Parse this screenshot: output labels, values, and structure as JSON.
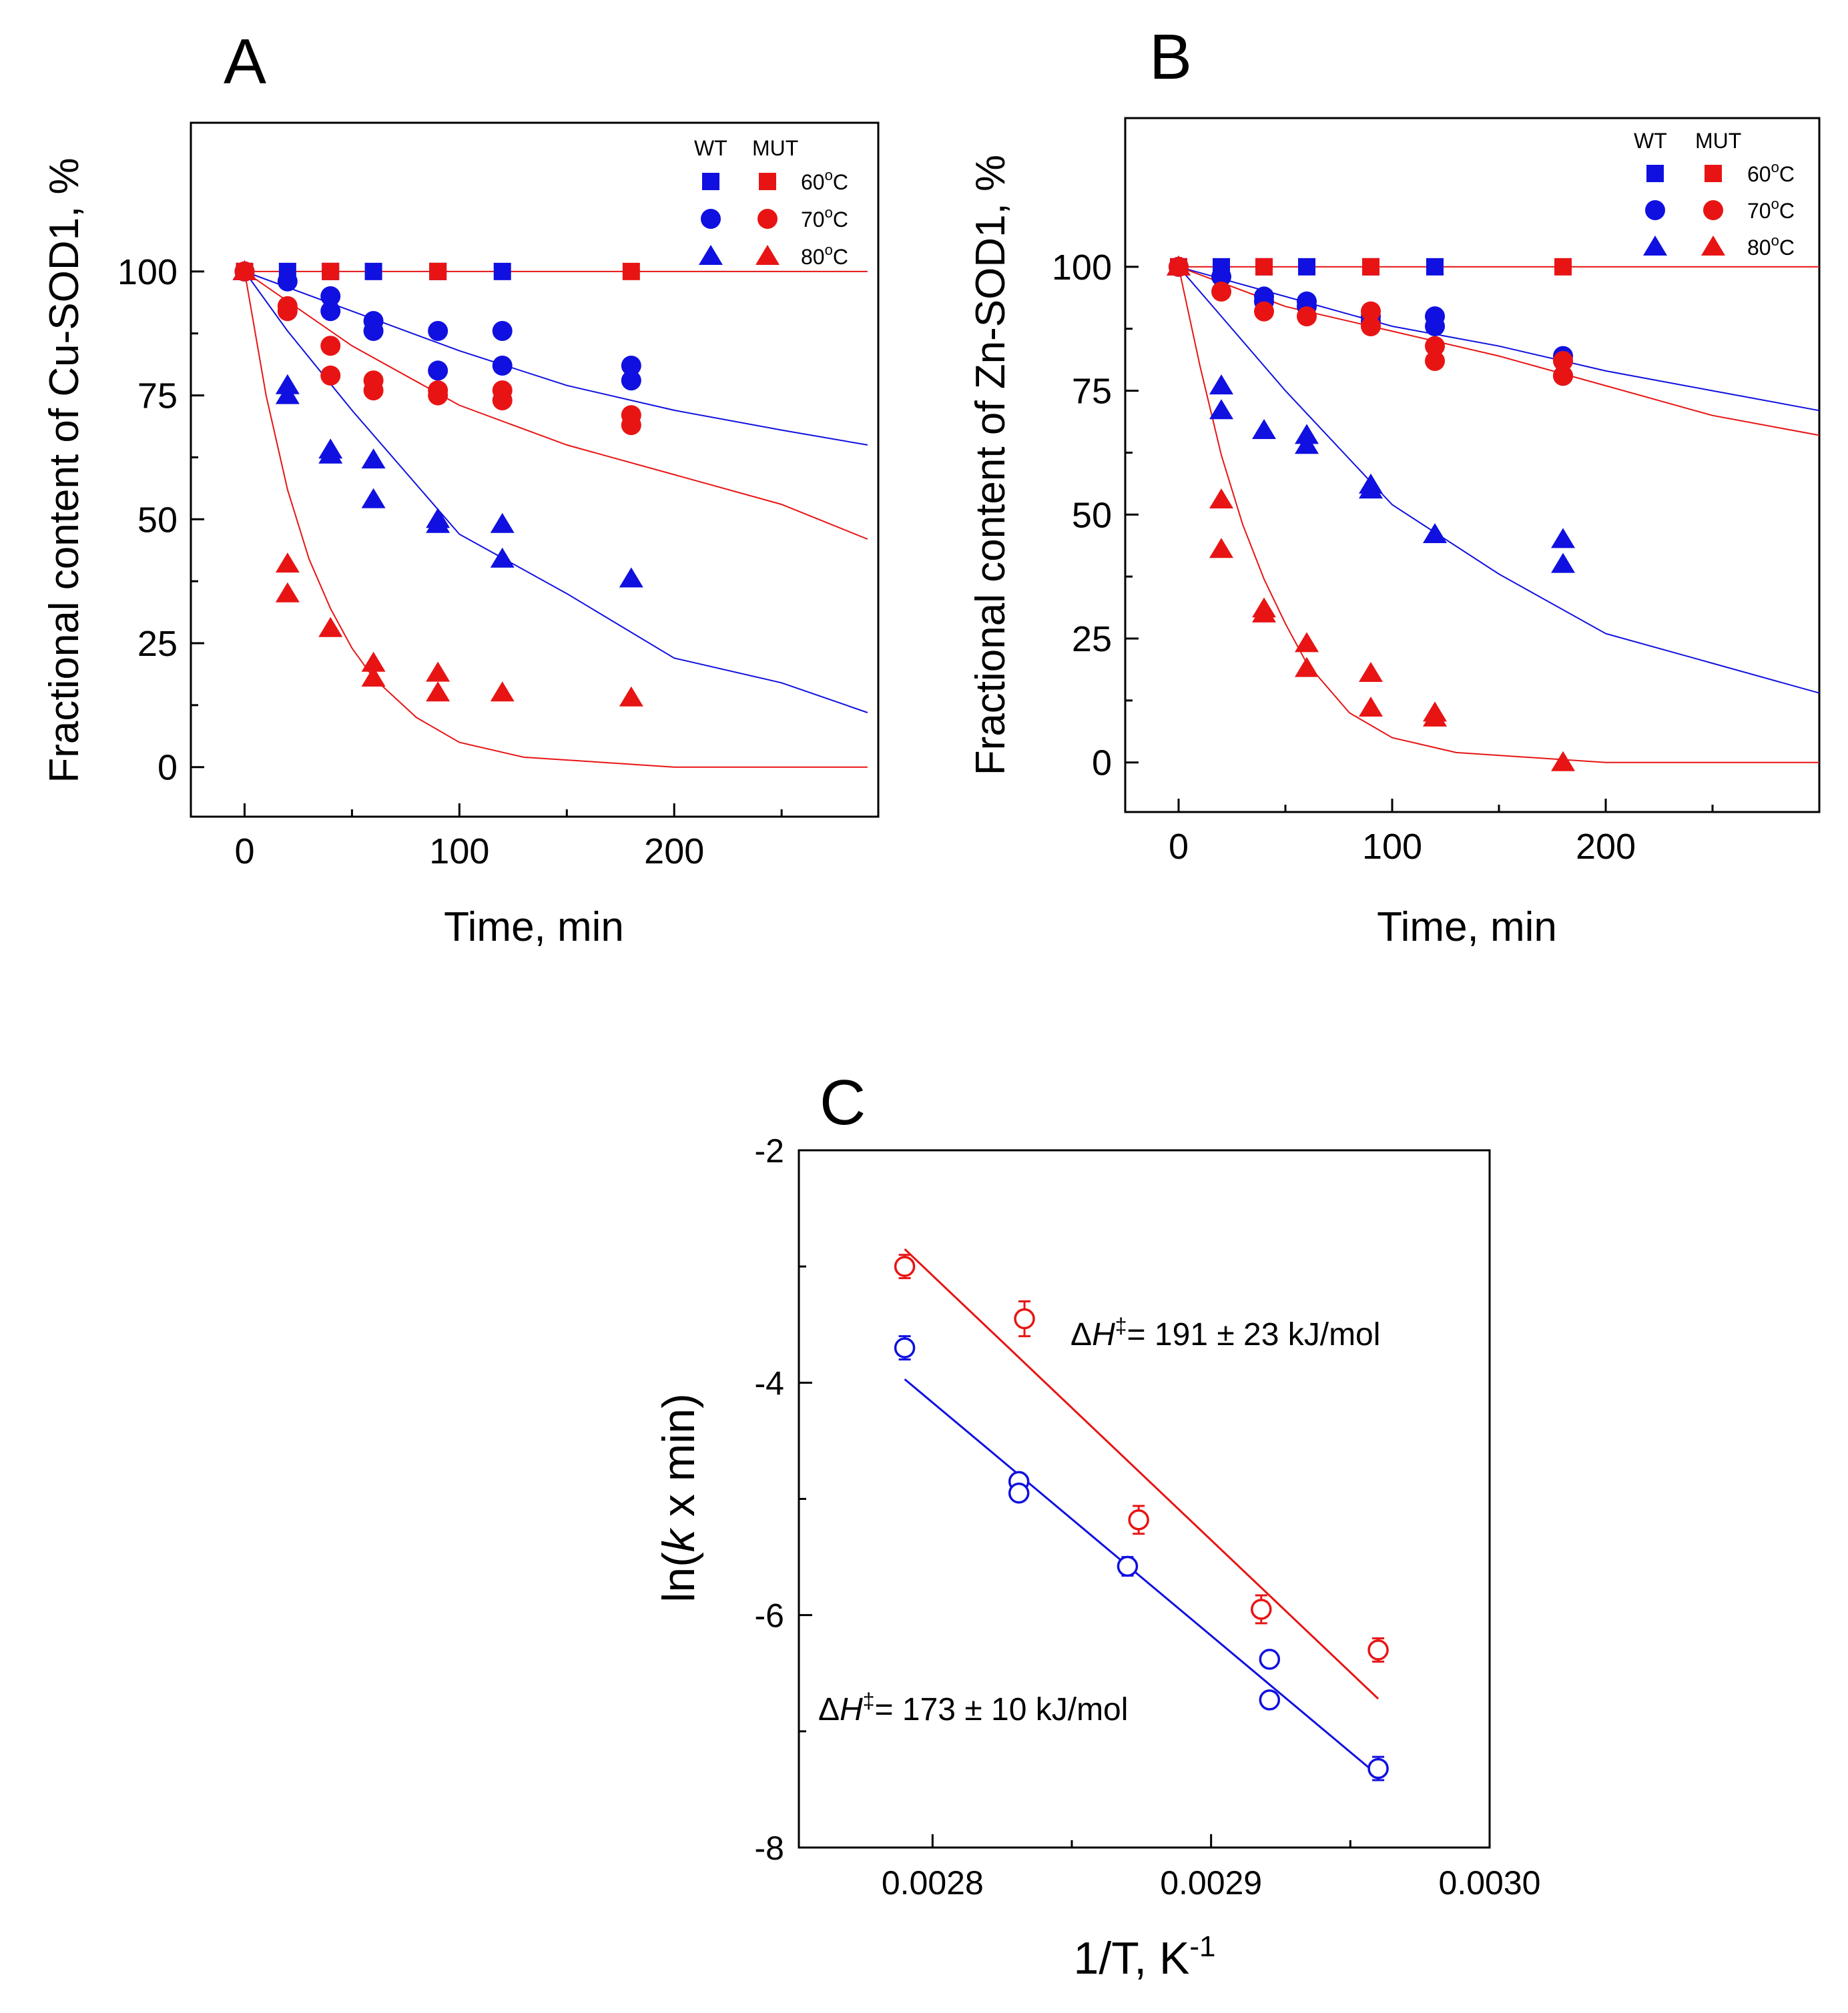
{
  "colors": {
    "wt": "#1010e0",
    "mut": "#e81414"
  },
  "chart_data": [
    {
      "id": "A",
      "type": "scatter",
      "panel_label": "A",
      "xlabel": "Time, min",
      "ylabel": "Fractional content of Cu-SOD1, %",
      "xlim": [
        -25,
        295
      ],
      "ylim": [
        -10,
        130
      ],
      "xticks": [
        0,
        100,
        200
      ],
      "yticks": [
        0,
        25,
        50,
        75,
        100
      ],
      "legend": {
        "position": "top-right",
        "headers": [
          "WT",
          "MUT"
        ],
        "rows": [
          {
            "label": "60",
            "unit": "C",
            "marker": "square"
          },
          {
            "label": "70",
            "unit": "C",
            "marker": "circle"
          },
          {
            "label": "80",
            "unit": "C",
            "marker": "triangle"
          }
        ]
      },
      "series": [
        {
          "name": "WT 60°C",
          "group": "wt",
          "marker": "square",
          "points": [
            [
              0,
              100
            ],
            [
              20,
              100
            ],
            [
              40,
              100
            ],
            [
              60,
              100
            ],
            [
              90,
              100
            ],
            [
              120,
              100
            ]
          ]
        },
        {
          "name": "MUT 60°C",
          "group": "mut",
          "marker": "square",
          "points": [
            [
              0,
              100
            ],
            [
              40,
              100
            ],
            [
              90,
              100
            ],
            [
              180,
              100
            ]
          ]
        },
        {
          "name": "WT 70°C",
          "group": "wt",
          "marker": "circle",
          "points": [
            [
              0,
              100
            ],
            [
              20,
              98
            ],
            [
              40,
              95
            ],
            [
              40,
              92
            ],
            [
              60,
              90
            ],
            [
              60,
              88
            ],
            [
              90,
              88
            ],
            [
              90,
              80
            ],
            [
              120,
              88
            ],
            [
              120,
              81
            ],
            [
              180,
              81
            ],
            [
              180,
              78
            ]
          ]
        },
        {
          "name": "MUT 70°C",
          "group": "mut",
          "marker": "circle",
          "points": [
            [
              0,
              100
            ],
            [
              20,
              93
            ],
            [
              20,
              92
            ],
            [
              40,
              85
            ],
            [
              40,
              79
            ],
            [
              60,
              78
            ],
            [
              60,
              76
            ],
            [
              90,
              76
            ],
            [
              90,
              75
            ],
            [
              120,
              76
            ],
            [
              120,
              74
            ],
            [
              180,
              71
            ],
            [
              180,
              69
            ]
          ]
        },
        {
          "name": "WT 80°C",
          "group": "wt",
          "marker": "triangle",
          "points": [
            [
              0,
              100
            ],
            [
              20,
              77
            ],
            [
              20,
              75
            ],
            [
              40,
              64
            ],
            [
              40,
              63
            ],
            [
              60,
              62
            ],
            [
              60,
              54
            ],
            [
              90,
              50
            ],
            [
              90,
              49
            ],
            [
              120,
              49
            ],
            [
              120,
              42
            ],
            [
              180,
              38
            ]
          ]
        },
        {
          "name": "MUT 80°C",
          "group": "mut",
          "marker": "triangle",
          "points": [
            [
              0,
              100
            ],
            [
              20,
              41
            ],
            [
              20,
              35
            ],
            [
              40,
              28
            ],
            [
              60,
              21
            ],
            [
              60,
              18
            ],
            [
              90,
              19
            ],
            [
              90,
              15
            ],
            [
              120,
              15
            ],
            [
              180,
              14
            ]
          ]
        }
      ],
      "fits": [
        {
          "name": "MUT 60°C fit",
          "group": "mut",
          "points": [
            [
              0,
              100
            ],
            [
              290,
              100
            ]
          ]
        },
        {
          "name": "WT 70°C fit",
          "group": "wt",
          "points": [
            [
              0,
              100
            ],
            [
              50,
              92
            ],
            [
              100,
              84
            ],
            [
              150,
              77
            ],
            [
              200,
              72
            ],
            [
              250,
              68
            ],
            [
              290,
              65
            ]
          ]
        },
        {
          "name": "MUT 70°C fit",
          "group": "mut",
          "points": [
            [
              0,
              100
            ],
            [
              50,
              85
            ],
            [
              100,
              73
            ],
            [
              150,
              65
            ],
            [
              200,
              59
            ],
            [
              250,
              53
            ],
            [
              290,
              46
            ]
          ]
        },
        {
          "name": "WT 80°C fit",
          "group": "wt",
          "points": [
            [
              0,
              100
            ],
            [
              20,
              88
            ],
            [
              50,
              72
            ],
            [
              100,
              47
            ],
            [
              150,
              35
            ],
            [
              200,
              22
            ],
            [
              250,
              17
            ],
            [
              290,
              11
            ]
          ]
        },
        {
          "name": "MUT 80°C fit",
          "group": "mut",
          "points": [
            [
              0,
              100
            ],
            [
              10,
              75
            ],
            [
              20,
              56
            ],
            [
              30,
              42
            ],
            [
              40,
              32
            ],
            [
              50,
              24
            ],
            [
              60,
              18
            ],
            [
              80,
              10
            ],
            [
              100,
              5
            ],
            [
              130,
              2
            ],
            [
              200,
              0
            ],
            [
              290,
              0
            ]
          ]
        }
      ]
    },
    {
      "id": "B",
      "type": "scatter",
      "panel_label": "B",
      "xlabel": "Time, min",
      "ylabel": "Fractional content of Zn-SOD1, %",
      "xlim": [
        -25,
        300
      ],
      "ylim": [
        -10,
        130
      ],
      "xticks": [
        0,
        100,
        200
      ],
      "yticks": [
        0,
        25,
        50,
        75,
        100
      ],
      "legend": {
        "position": "top-right",
        "headers": [
          "WT",
          "MUT"
        ],
        "rows": [
          {
            "label": "60",
            "unit": "C",
            "marker": "square"
          },
          {
            "label": "70",
            "unit": "C",
            "marker": "circle"
          },
          {
            "label": "80",
            "unit": "C",
            "marker": "triangle"
          }
        ]
      },
      "series": [
        {
          "name": "WT 60°C",
          "group": "wt",
          "marker": "square",
          "points": [
            [
              0,
              100
            ],
            [
              20,
              100
            ],
            [
              40,
              100
            ],
            [
              60,
              100
            ],
            [
              90,
              100
            ],
            [
              120,
              100
            ]
          ]
        },
        {
          "name": "MUT 60°C",
          "group": "mut",
          "marker": "square",
          "points": [
            [
              0,
              100
            ],
            [
              40,
              100
            ],
            [
              90,
              100
            ],
            [
              180,
              100
            ]
          ]
        },
        {
          "name": "WT 70°C",
          "group": "wt",
          "marker": "circle",
          "points": [
            [
              0,
              100
            ],
            [
              20,
              98
            ],
            [
              40,
              94
            ],
            [
              40,
              93
            ],
            [
              60,
              93
            ],
            [
              60,
              92
            ],
            [
              90,
              90
            ],
            [
              90,
              89
            ],
            [
              120,
              90
            ],
            [
              120,
              88
            ],
            [
              180,
              82
            ],
            [
              180,
              78
            ]
          ]
        },
        {
          "name": "MUT 70°C",
          "group": "mut",
          "marker": "circle",
          "points": [
            [
              0,
              100
            ],
            [
              20,
              95
            ],
            [
              40,
              91
            ],
            [
              60,
              90
            ],
            [
              90,
              91
            ],
            [
              90,
              88
            ],
            [
              120,
              84
            ],
            [
              120,
              81
            ],
            [
              180,
              81
            ],
            [
              180,
              78
            ]
          ]
        },
        {
          "name": "WT 80°C",
          "group": "wt",
          "marker": "triangle",
          "points": [
            [
              0,
              100
            ],
            [
              20,
              76
            ],
            [
              20,
              71
            ],
            [
              40,
              67
            ],
            [
              60,
              66
            ],
            [
              60,
              64
            ],
            [
              90,
              56
            ],
            [
              90,
              55
            ],
            [
              120,
              46
            ],
            [
              180,
              45
            ],
            [
              180,
              40
            ]
          ]
        },
        {
          "name": "MUT 80°C",
          "group": "mut",
          "marker": "triangle",
          "points": [
            [
              0,
              100
            ],
            [
              20,
              53
            ],
            [
              20,
              43
            ],
            [
              40,
              31
            ],
            [
              40,
              30
            ],
            [
              60,
              24
            ],
            [
              60,
              19
            ],
            [
              90,
              18
            ],
            [
              90,
              11
            ],
            [
              120,
              10
            ],
            [
              120,
              9
            ],
            [
              180,
              0
            ]
          ]
        }
      ],
      "fits": [
        {
          "name": "MUT 60°C fit",
          "group": "mut",
          "points": [
            [
              0,
              100
            ],
            [
              300,
              100
            ]
          ]
        },
        {
          "name": "WT 70°C fit",
          "group": "wt",
          "points": [
            [
              0,
              100
            ],
            [
              50,
              94
            ],
            [
              100,
              88
            ],
            [
              150,
              84
            ],
            [
              200,
              79
            ],
            [
              250,
              75
            ],
            [
              300,
              71
            ]
          ]
        },
        {
          "name": "MUT 70°C fit",
          "group": "mut",
          "points": [
            [
              0,
              100
            ],
            [
              50,
              92
            ],
            [
              100,
              87
            ],
            [
              150,
              82
            ],
            [
              200,
              76
            ],
            [
              250,
              70
            ],
            [
              300,
              66
            ]
          ]
        },
        {
          "name": "WT 80°C fit",
          "group": "wt",
          "points": [
            [
              0,
              100
            ],
            [
              20,
              90
            ],
            [
              50,
              75
            ],
            [
              100,
              52
            ],
            [
              150,
              38
            ],
            [
              200,
              26
            ],
            [
              250,
              20
            ],
            [
              300,
              14
            ]
          ]
        },
        {
          "name": "MUT 80°C fit",
          "group": "mut",
          "points": [
            [
              0,
              100
            ],
            [
              10,
              80
            ],
            [
              20,
              62
            ],
            [
              30,
              48
            ],
            [
              40,
              37
            ],
            [
              50,
              28
            ],
            [
              60,
              20
            ],
            [
              80,
              10
            ],
            [
              100,
              5
            ],
            [
              130,
              2
            ],
            [
              200,
              0
            ],
            [
              300,
              0
            ]
          ]
        }
      ]
    },
    {
      "id": "C",
      "type": "scatter",
      "panel_label": "C",
      "xlabel": "1/T, K",
      "xlabel_sup": "-1",
      "ylabel_prefix": "ln(",
      "ylabel_italic": "k",
      "ylabel_suffix": " x min)",
      "xlim": [
        0.002752,
        0.003
      ],
      "ylim": [
        -8,
        -2
      ],
      "xticks": [
        "0.0028",
        "0.0029",
        "0.0030"
      ],
      "yticks": [
        -8,
        -6,
        -4,
        -2
      ],
      "series": [
        {
          "name": "MUT",
          "group": "mut",
          "marker": "open-circle",
          "points": [
            [
              0.00279,
              -3.0,
              0.1
            ],
            [
              0.002833,
              -3.45,
              0.15
            ],
            [
              0.002874,
              -5.18,
              0.12
            ],
            [
              0.002918,
              -5.95,
              0.12
            ],
            [
              0.00296,
              -6.3,
              0.1
            ]
          ]
        },
        {
          "name": "WT",
          "group": "wt",
          "marker": "open-circle",
          "points": [
            [
              0.00279,
              -3.7,
              0.1
            ],
            [
              0.002831,
              -4.85,
              0.05
            ],
            [
              0.002831,
              -4.95,
              0.05
            ],
            [
              0.00287,
              -5.58,
              0.08
            ],
            [
              0.002921,
              -6.38,
              0.05
            ],
            [
              0.002921,
              -6.73,
              0.05
            ],
            [
              0.00296,
              -7.32,
              0.1
            ]
          ]
        }
      ],
      "fits": [
        {
          "name": "MUT fit",
          "group": "mut",
          "points": [
            [
              0.00279,
              -2.85
            ],
            [
              0.00296,
              -6.72
            ]
          ]
        },
        {
          "name": "WT fit",
          "group": "wt",
          "points": [
            [
              0.00279,
              -3.97
            ],
            [
              0.00296,
              -7.38
            ]
          ]
        }
      ],
      "annotations": [
        {
          "group": "mut",
          "pre": "Δ",
          "italic": "H",
          "sup": "‡",
          "text": "= 191 ± 23 kJ/mol"
        },
        {
          "group": "wt",
          "pre": "Δ",
          "italic": "H",
          "sup": "‡",
          "text": "= 173 ± 10 kJ/mol"
        }
      ]
    }
  ]
}
